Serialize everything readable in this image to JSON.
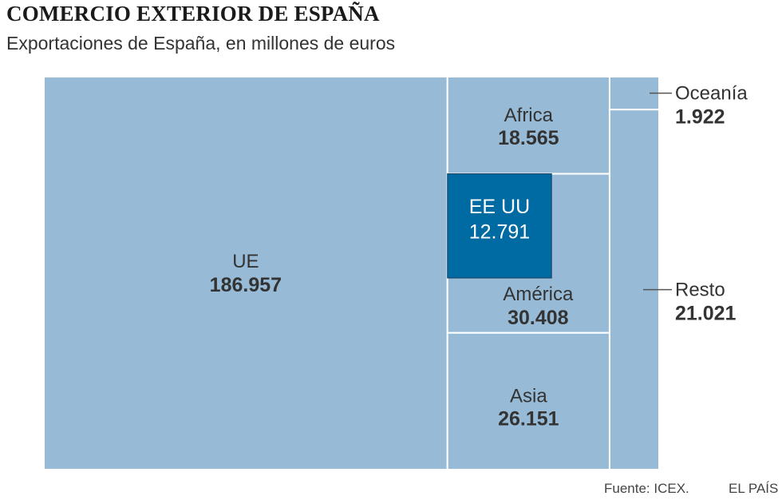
{
  "title": "COMERCIO EXTERIOR DE ESPAÑA",
  "subtitle": "Exportaciones de España, en millones de euros",
  "source": "Fuente: ICEX.",
  "publisher": "EL PAÍS",
  "colors": {
    "region_fill": "#97bbd6",
    "highlight_fill": "#006aa3",
    "border": "#ffffff",
    "leader_line": "#555555"
  },
  "chart_data": {
    "type": "treemap",
    "unit": "millones de euros",
    "items": [
      {
        "name": "UE",
        "value": 186957,
        "label": "186.957"
      },
      {
        "name": "Africa",
        "value": 18565,
        "label": "18.565"
      },
      {
        "name": "América",
        "value": 30408,
        "label": "30.408"
      },
      {
        "name": "Asia",
        "value": 26151,
        "label": "26.151"
      },
      {
        "name": "Oceanía",
        "value": 1922,
        "label": "1.922"
      },
      {
        "name": "Resto",
        "value": 21021,
        "label": "21.021"
      }
    ],
    "highlight": {
      "name": "EE UU",
      "value": 12791,
      "label": "12.791",
      "within": "América"
    }
  }
}
